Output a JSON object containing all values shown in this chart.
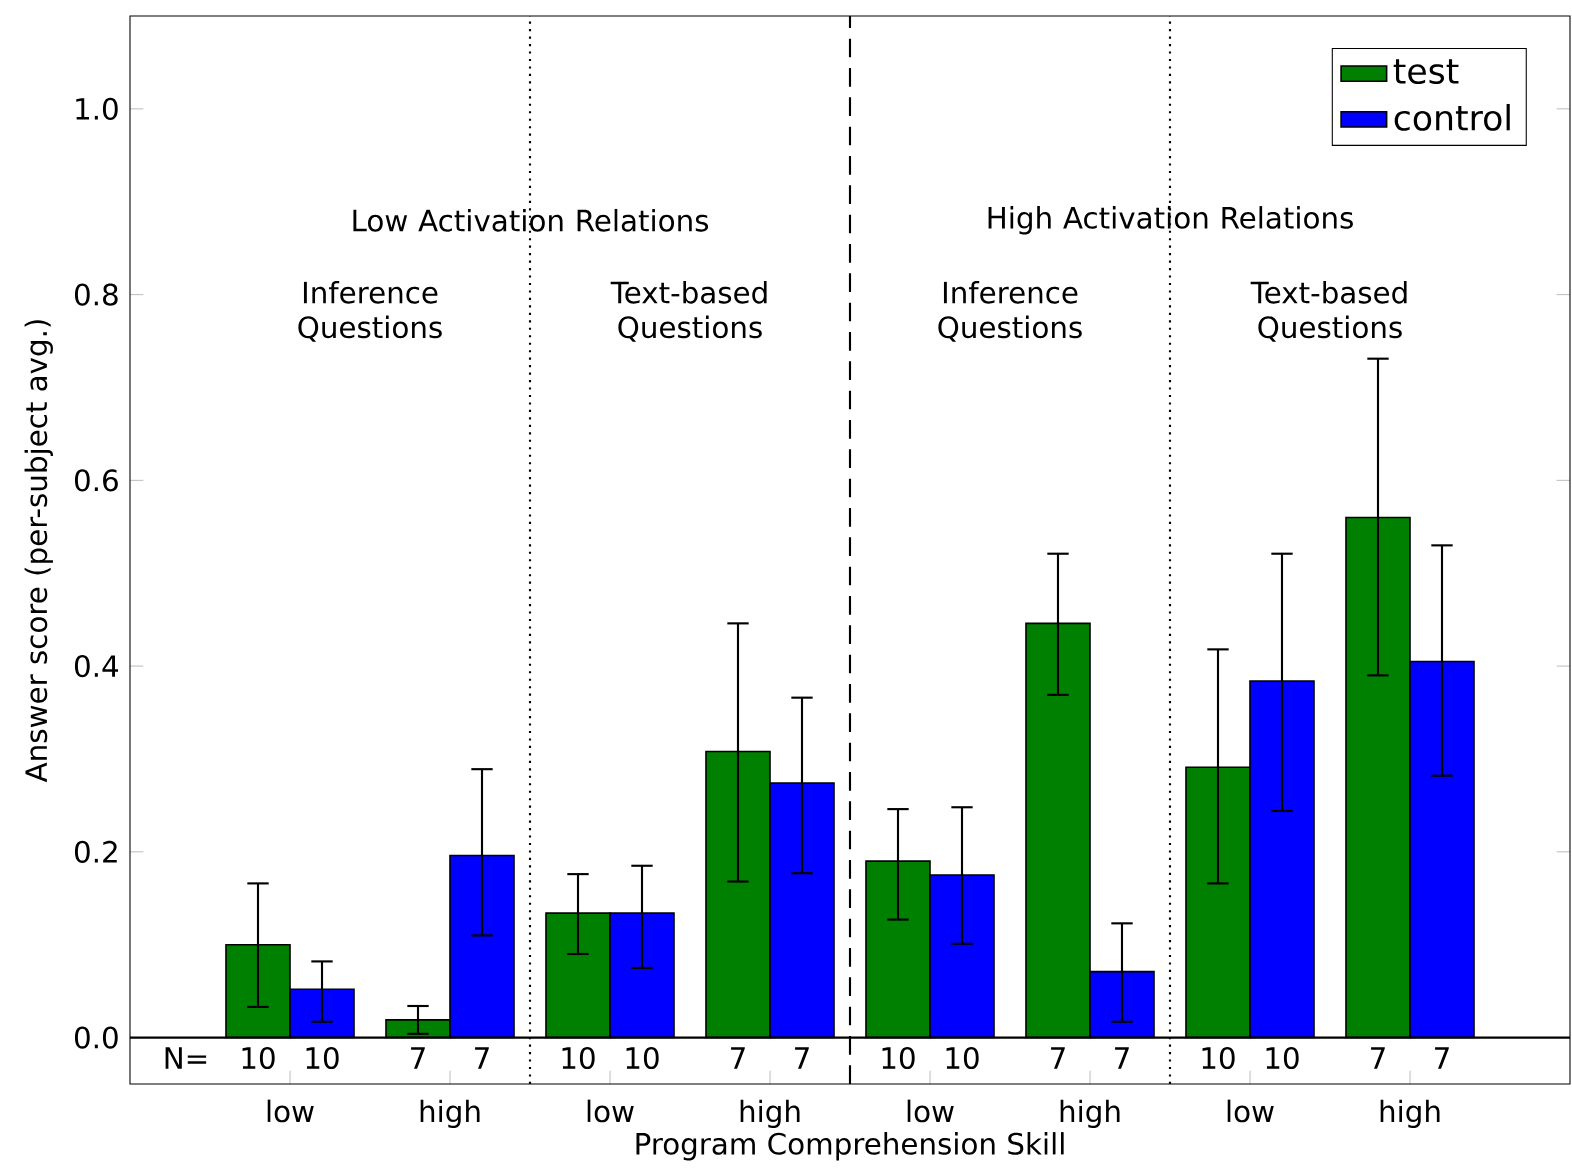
{
  "chart_data": {
    "type": "bar",
    "xlabel": "Program Comprehension Skill",
    "ylabel": "Answer score (per-subject avg.)",
    "categories": [
      "low",
      "high",
      "low",
      "high",
      "low",
      "high",
      "low",
      "high"
    ],
    "series": [
      {
        "name": "test",
        "color": "#008000",
        "values": [
          0.1,
          0.019,
          0.134,
          0.308,
          0.19,
          0.446,
          0.291,
          0.56
        ],
        "errors": [
          [
            0.033,
            0.166
          ],
          [
            0.004,
            0.034
          ],
          [
            0.09,
            0.176
          ],
          [
            0.168,
            0.446
          ],
          [
            0.127,
            0.246
          ],
          [
            0.369,
            0.521
          ],
          [
            0.166,
            0.418
          ],
          [
            0.39,
            0.731
          ]
        ]
      },
      {
        "name": "control",
        "color": "#0000ff",
        "values": [
          0.052,
          0.196,
          0.134,
          0.274,
          0.175,
          0.071,
          0.384,
          0.405
        ],
        "errors": [
          [
            0.017,
            0.082
          ],
          [
            0.11,
            0.289
          ],
          [
            0.075,
            0.185
          ],
          [
            0.177,
            0.366
          ],
          [
            0.101,
            0.248
          ],
          [
            0.017,
            0.123
          ],
          [
            0.244,
            0.521
          ],
          [
            0.282,
            0.53
          ]
        ]
      }
    ],
    "ylim": [
      -0.05,
      1.1
    ],
    "yticks": [
      {
        "value": 0,
        "label": "0.0"
      },
      {
        "value": 0.2,
        "label": "0.2"
      },
      {
        "value": 0.4,
        "label": "0.4"
      },
      {
        "value": 0.6,
        "label": "0.6"
      },
      {
        "value": 0.8,
        "label": "0.8"
      },
      {
        "value": 1.0,
        "label": "1.0"
      }
    ],
    "ref_lines": [
      {
        "axis": "y",
        "value": 0,
        "color": "#000000",
        "line_style": "solid"
      }
    ],
    "annotations": [
      "Low Activation Relations",
      "High Activation Relations",
      "Inference Questions",
      "Text-based Questions",
      "Inference Questions",
      "Text-based Questions",
      "N=",
      "10",
      "10",
      "7",
      "7",
      "10",
      "10",
      "7",
      "7",
      "10",
      "10",
      "7",
      "7",
      "10",
      "10",
      "7",
      "7"
    ],
    "legend": "top right",
    "grid": false
  }
}
